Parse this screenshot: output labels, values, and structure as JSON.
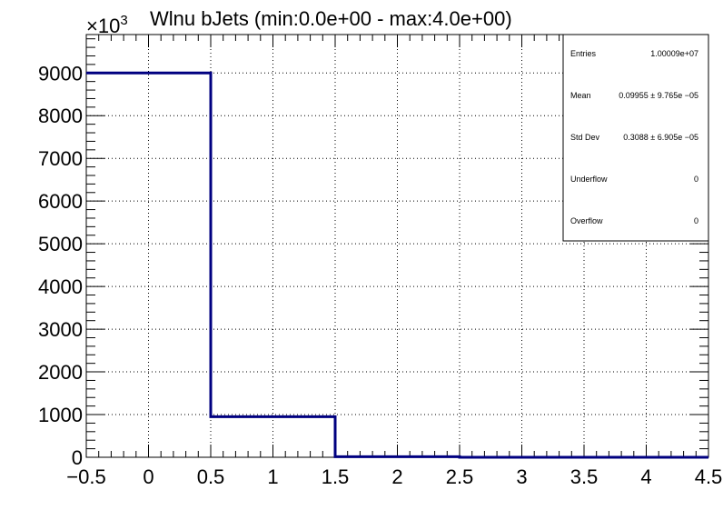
{
  "chart_data": {
    "type": "bar",
    "title": "Wlnu bJets (min:0.0e+00 - max:4.0e+00)",
    "y_multiplier_label": "×10",
    "y_multiplier_exponent": "3",
    "xlim": [
      -0.5,
      4.5
    ],
    "ylim": [
      0,
      9900
    ],
    "grid": true,
    "bins": [
      {
        "low": -0.5,
        "high": 0.5,
        "value": 9000
      },
      {
        "low": 0.5,
        "high": 1.5,
        "value": 950
      },
      {
        "low": 1.5,
        "high": 2.5,
        "value": 12
      },
      {
        "low": 2.5,
        "high": 3.5,
        "value": 1
      },
      {
        "low": 3.5,
        "high": 4.5,
        "value": 0
      }
    ],
    "x_ticks": [
      {
        "value": -0.5,
        "label": "−0.5"
      },
      {
        "value": 0,
        "label": "0"
      },
      {
        "value": 0.5,
        "label": "0.5"
      },
      {
        "value": 1,
        "label": "1"
      },
      {
        "value": 1.5,
        "label": "1.5"
      },
      {
        "value": 2,
        "label": "2"
      },
      {
        "value": 2.5,
        "label": "2.5"
      },
      {
        "value": 3,
        "label": "3"
      },
      {
        "value": 3.5,
        "label": "3.5"
      },
      {
        "value": 4,
        "label": "4"
      },
      {
        "value": 4.5,
        "label": "4.5"
      }
    ],
    "y_ticks": [
      {
        "value": 0,
        "label": "0"
      },
      {
        "value": 1000,
        "label": "1000"
      },
      {
        "value": 2000,
        "label": "2000"
      },
      {
        "value": 3000,
        "label": "3000"
      },
      {
        "value": 4000,
        "label": "4000"
      },
      {
        "value": 5000,
        "label": "5000"
      },
      {
        "value": 6000,
        "label": "6000"
      },
      {
        "value": 7000,
        "label": "7000"
      },
      {
        "value": 8000,
        "label": "8000"
      },
      {
        "value": 9000,
        "label": "9000"
      }
    ],
    "line_color": "#000080",
    "stats_box": {
      "placement": "top-right",
      "rows": [
        {
          "label": "Entries",
          "value": "1.00009e+07"
        },
        {
          "label": "Mean",
          "value": "0.09955  ± 9.765e −05"
        },
        {
          "label": "Std Dev",
          "value": "0.3088  ± 6.905e −05"
        },
        {
          "label": "Underflow",
          "value": "0"
        },
        {
          "label": "Overflow",
          "value": "0"
        }
      ]
    }
  }
}
